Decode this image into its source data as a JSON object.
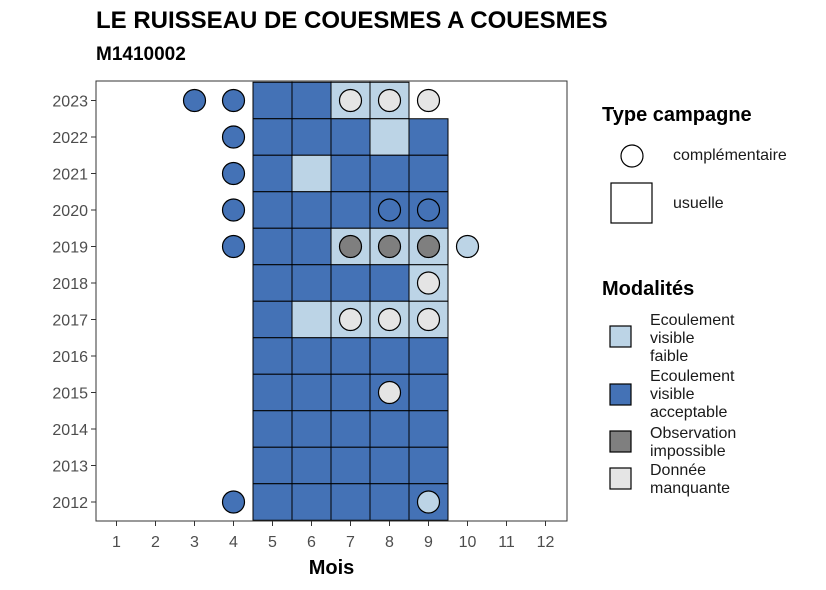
{
  "title": "LE RUISSEAU DE COUESMES A COUESMES",
  "subtitle": "M1410002",
  "legend": {
    "type_title": "Type campagne",
    "type_items": [
      {
        "label": "complémentaire",
        "shape": "circle"
      },
      {
        "label": "usuelle",
        "shape": "square"
      }
    ],
    "mod_title": "Modalités",
    "mod_items": [
      {
        "label": "Ecoulement\nvisible\nfaible",
        "color": "#bcd4e6"
      },
      {
        "label": "Ecoulement\nvisible\nacceptable",
        "color": "#4472b6"
      },
      {
        "label": "Observation\nimpossible",
        "color": "#7f7f7f"
      },
      {
        "label": "Donnée\nmanquante",
        "color": "#e5e5e5"
      }
    ]
  },
  "chart_data": {
    "type": "heatmap",
    "title": "LE RUISSEAU DE COUESMES A COUESMES",
    "subtitle": "M1410002",
    "xlabel": "Mois",
    "ylabel": "",
    "x_ticks": [
      1,
      2,
      3,
      4,
      5,
      6,
      7,
      8,
      9,
      10,
      11,
      12
    ],
    "y_ticks": [
      2012,
      2013,
      2014,
      2015,
      2016,
      2017,
      2018,
      2019,
      2020,
      2021,
      2022,
      2023
    ],
    "colors": {
      "faible": "#bcd4e6",
      "acceptable": "#4472b6",
      "impossible": "#7f7f7f",
      "manquante": "#e5e5e5"
    },
    "usuelle": [
      {
        "year": 2023,
        "month": 5,
        "m": "acceptable"
      },
      {
        "year": 2023,
        "month": 6,
        "m": "acceptable"
      },
      {
        "year": 2023,
        "month": 7,
        "m": "faible"
      },
      {
        "year": 2023,
        "month": 8,
        "m": "faible"
      },
      {
        "year": 2022,
        "month": 5,
        "m": "acceptable"
      },
      {
        "year": 2022,
        "month": 6,
        "m": "acceptable"
      },
      {
        "year": 2022,
        "month": 7,
        "m": "acceptable"
      },
      {
        "year": 2022,
        "month": 8,
        "m": "faible"
      },
      {
        "year": 2022,
        "month": 9,
        "m": "acceptable"
      },
      {
        "year": 2021,
        "month": 5,
        "m": "acceptable"
      },
      {
        "year": 2021,
        "month": 6,
        "m": "faible"
      },
      {
        "year": 2021,
        "month": 7,
        "m": "acceptable"
      },
      {
        "year": 2021,
        "month": 8,
        "m": "acceptable"
      },
      {
        "year": 2021,
        "month": 9,
        "m": "acceptable"
      },
      {
        "year": 2020,
        "month": 5,
        "m": "acceptable"
      },
      {
        "year": 2020,
        "month": 6,
        "m": "acceptable"
      },
      {
        "year": 2020,
        "month": 7,
        "m": "acceptable"
      },
      {
        "year": 2020,
        "month": 8,
        "m": "acceptable"
      },
      {
        "year": 2020,
        "month": 9,
        "m": "acceptable"
      },
      {
        "year": 2019,
        "month": 5,
        "m": "acceptable"
      },
      {
        "year": 2019,
        "month": 6,
        "m": "acceptable"
      },
      {
        "year": 2019,
        "month": 7,
        "m": "faible"
      },
      {
        "year": 2019,
        "month": 8,
        "m": "faible"
      },
      {
        "year": 2019,
        "month": 9,
        "m": "faible"
      },
      {
        "year": 2018,
        "month": 5,
        "m": "acceptable"
      },
      {
        "year": 2018,
        "month": 6,
        "m": "acceptable"
      },
      {
        "year": 2018,
        "month": 7,
        "m": "acceptable"
      },
      {
        "year": 2018,
        "month": 8,
        "m": "acceptable"
      },
      {
        "year": 2018,
        "month": 9,
        "m": "faible"
      },
      {
        "year": 2017,
        "month": 5,
        "m": "acceptable"
      },
      {
        "year": 2017,
        "month": 6,
        "m": "faible"
      },
      {
        "year": 2017,
        "month": 7,
        "m": "faible"
      },
      {
        "year": 2017,
        "month": 8,
        "m": "faible"
      },
      {
        "year": 2017,
        "month": 9,
        "m": "faible"
      },
      {
        "year": 2016,
        "month": 5,
        "m": "acceptable"
      },
      {
        "year": 2016,
        "month": 6,
        "m": "acceptable"
      },
      {
        "year": 2016,
        "month": 7,
        "m": "acceptable"
      },
      {
        "year": 2016,
        "month": 8,
        "m": "acceptable"
      },
      {
        "year": 2016,
        "month": 9,
        "m": "acceptable"
      },
      {
        "year": 2015,
        "month": 5,
        "m": "acceptable"
      },
      {
        "year": 2015,
        "month": 6,
        "m": "acceptable"
      },
      {
        "year": 2015,
        "month": 7,
        "m": "acceptable"
      },
      {
        "year": 2015,
        "month": 8,
        "m": "acceptable"
      },
      {
        "year": 2015,
        "month": 9,
        "m": "acceptable"
      },
      {
        "year": 2014,
        "month": 5,
        "m": "acceptable"
      },
      {
        "year": 2014,
        "month": 6,
        "m": "acceptable"
      },
      {
        "year": 2014,
        "month": 7,
        "m": "acceptable"
      },
      {
        "year": 2014,
        "month": 8,
        "m": "acceptable"
      },
      {
        "year": 2014,
        "month": 9,
        "m": "acceptable"
      },
      {
        "year": 2013,
        "month": 5,
        "m": "acceptable"
      },
      {
        "year": 2013,
        "month": 6,
        "m": "acceptable"
      },
      {
        "year": 2013,
        "month": 7,
        "m": "acceptable"
      },
      {
        "year": 2013,
        "month": 8,
        "m": "acceptable"
      },
      {
        "year": 2013,
        "month": 9,
        "m": "acceptable"
      },
      {
        "year": 2012,
        "month": 5,
        "m": "acceptable"
      },
      {
        "year": 2012,
        "month": 6,
        "m": "acceptable"
      },
      {
        "year": 2012,
        "month": 7,
        "m": "acceptable"
      },
      {
        "year": 2012,
        "month": 8,
        "m": "acceptable"
      },
      {
        "year": 2012,
        "month": 9,
        "m": "acceptable"
      }
    ],
    "complementaire": [
      {
        "year": 2023,
        "month": 3,
        "m": "acceptable"
      },
      {
        "year": 2023,
        "month": 4,
        "m": "acceptable"
      },
      {
        "year": 2023,
        "month": 7,
        "m": "manquante"
      },
      {
        "year": 2023,
        "month": 8,
        "m": "manquante"
      },
      {
        "year": 2023,
        "month": 9,
        "m": "manquante"
      },
      {
        "year": 2022,
        "month": 4,
        "m": "acceptable"
      },
      {
        "year": 2021,
        "month": 4,
        "m": "acceptable"
      },
      {
        "year": 2020,
        "month": 4,
        "m": "acceptable"
      },
      {
        "year": 2020,
        "month": 8,
        "m": "acceptable"
      },
      {
        "year": 2020,
        "month": 9,
        "m": "acceptable"
      },
      {
        "year": 2019,
        "month": 4,
        "m": "acceptable"
      },
      {
        "year": 2019,
        "month": 7,
        "m": "impossible"
      },
      {
        "year": 2019,
        "month": 8,
        "m": "impossible"
      },
      {
        "year": 2019,
        "month": 9,
        "m": "impossible"
      },
      {
        "year": 2019,
        "month": 10,
        "m": "faible"
      },
      {
        "year": 2018,
        "month": 9,
        "m": "manquante"
      },
      {
        "year": 2017,
        "month": 7,
        "m": "manquante"
      },
      {
        "year": 2017,
        "month": 8,
        "m": "manquante"
      },
      {
        "year": 2017,
        "month": 9,
        "m": "manquante"
      },
      {
        "year": 2015,
        "month": 8,
        "m": "manquante"
      },
      {
        "year": 2012,
        "month": 4,
        "m": "acceptable"
      },
      {
        "year": 2012,
        "month": 9,
        "m": "faible"
      }
    ]
  }
}
